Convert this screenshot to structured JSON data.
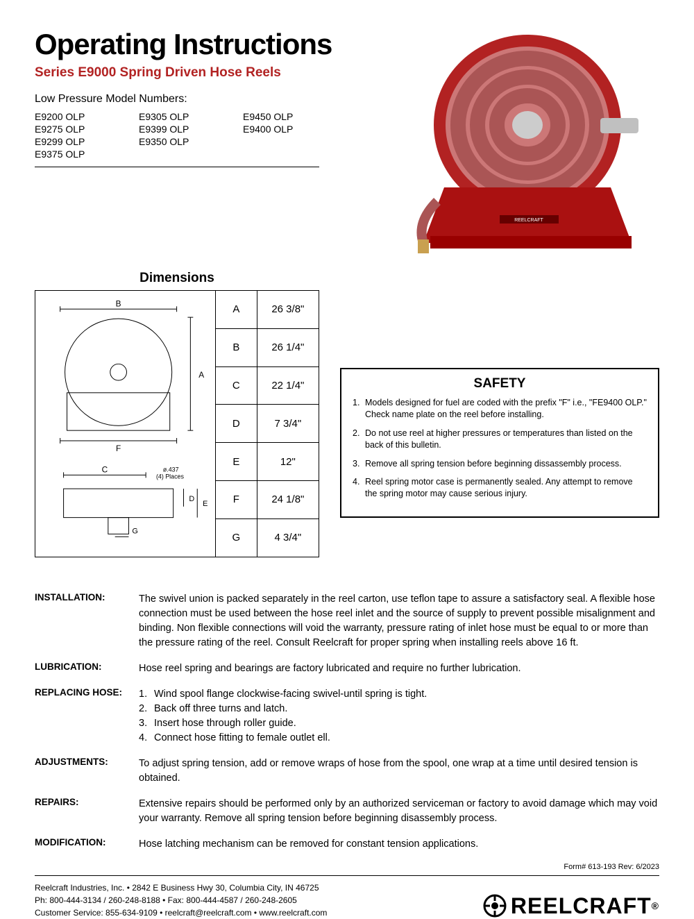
{
  "title": "Operating Instructions",
  "subtitle": "Series E9000 Spring Driven Hose Reels",
  "subtitle_color": "#b22222",
  "models_label": "Low Pressure Model Numbers:",
  "models": [
    "E9200 OLP",
    "E9305 OLP",
    "E9450 OLP",
    "E9275 OLP",
    "E9399 OLP",
    "E9400 OLP",
    "E9299 OLP",
    "E9350 OLP",
    "",
    "E9375 OLP",
    "",
    ""
  ],
  "product_image": {
    "reel_color": "#b22222",
    "hose_color": "#cc6666",
    "hub_color": "#cccccc",
    "plate_text": "REELCRAFT"
  },
  "dimensions": {
    "title": "Dimensions",
    "rows": [
      {
        "label": "A",
        "value": "26 3/8\""
      },
      {
        "label": "B",
        "value": "26 1/4\""
      },
      {
        "label": "C",
        "value": "22 1/4\""
      },
      {
        "label": "D",
        "value": "7 3/4\""
      },
      {
        "label": "E",
        "value": "12\""
      },
      {
        "label": "F",
        "value": "24 1/8\""
      },
      {
        "label": "G",
        "value": "4 3/4\""
      }
    ],
    "diagram_note": "ø.437 (4) Places",
    "labels": {
      "B": "B",
      "A": "A",
      "F": "F",
      "C": "C",
      "D": "D",
      "E": "E",
      "G": "G"
    }
  },
  "safety": {
    "title": "SAFETY",
    "items": [
      "Models designed for fuel are coded with the prefix \"F\" i.e., \"FE9400 OLP.\" Check name plate on the reel before installing.",
      "Do not use reel at higher pressures or temperatures than listed on the back of this bulletin.",
      "Remove all spring tension before beginning dissassembly process.",
      "Reel spring motor case is permanently sealed. Any attempt to remove the spring motor may cause serious injury."
    ]
  },
  "sections": [
    {
      "label": "INSTALLATION:",
      "body": "The swivel union is packed separately in the reel carton, use teflon tape to assure a satisfactory seal. A flexible hose connection must be used between the hose reel inlet and the source of supply to prevent possible misalignment and binding. Non flexible connections will void the warranty, pressure rating of inlet hose must be equal to or more than the pressure rating of the reel. Consult Reelcraft for proper spring when installing reels above 16 ft."
    },
    {
      "label": "LUBRICATION:",
      "body": "Hose reel spring and bearings are factory lubricated and require no further lubrication."
    },
    {
      "label": "REPLACING HOSE:",
      "list": [
        "Wind spool flange clockwise-facing swivel-until spring is tight.",
        "Back off three turns and latch.",
        "Insert hose through roller guide.",
        "Connect hose fitting to female outlet ell."
      ]
    },
    {
      "label": "ADJUSTMENTS:",
      "body": "To adjust spring tension, add or remove wraps of hose from the spool, one wrap at a time until desired tension is obtained."
    },
    {
      "label": "REPAIRS:",
      "body": "Extensive repairs should be performed only by an authorized serviceman or factory to avoid damage which may void your warranty.  Remove all spring tension before beginning disassembly process."
    },
    {
      "label": "MODIFICATION:",
      "body": "Hose latching mechanism can be removed for constant tension applications."
    }
  ],
  "form_no": "Form# 613-193  Rev: 6/2023",
  "footer": {
    "line1": "Reelcraft Industries, Inc. • 2842 E Business Hwy 30, Columbia City, IN 46725",
    "line2": "Ph: 800-444-3134 / 260-248-8188 • Fax: 800-444-4587 / 260-248-2605",
    "line3": "Customer Service: 855-634-9109 • reelcraft@reelcraft.com • www.reelcraft.com",
    "logo_text": "REELCRAFT",
    "logo_color": "#000000"
  }
}
